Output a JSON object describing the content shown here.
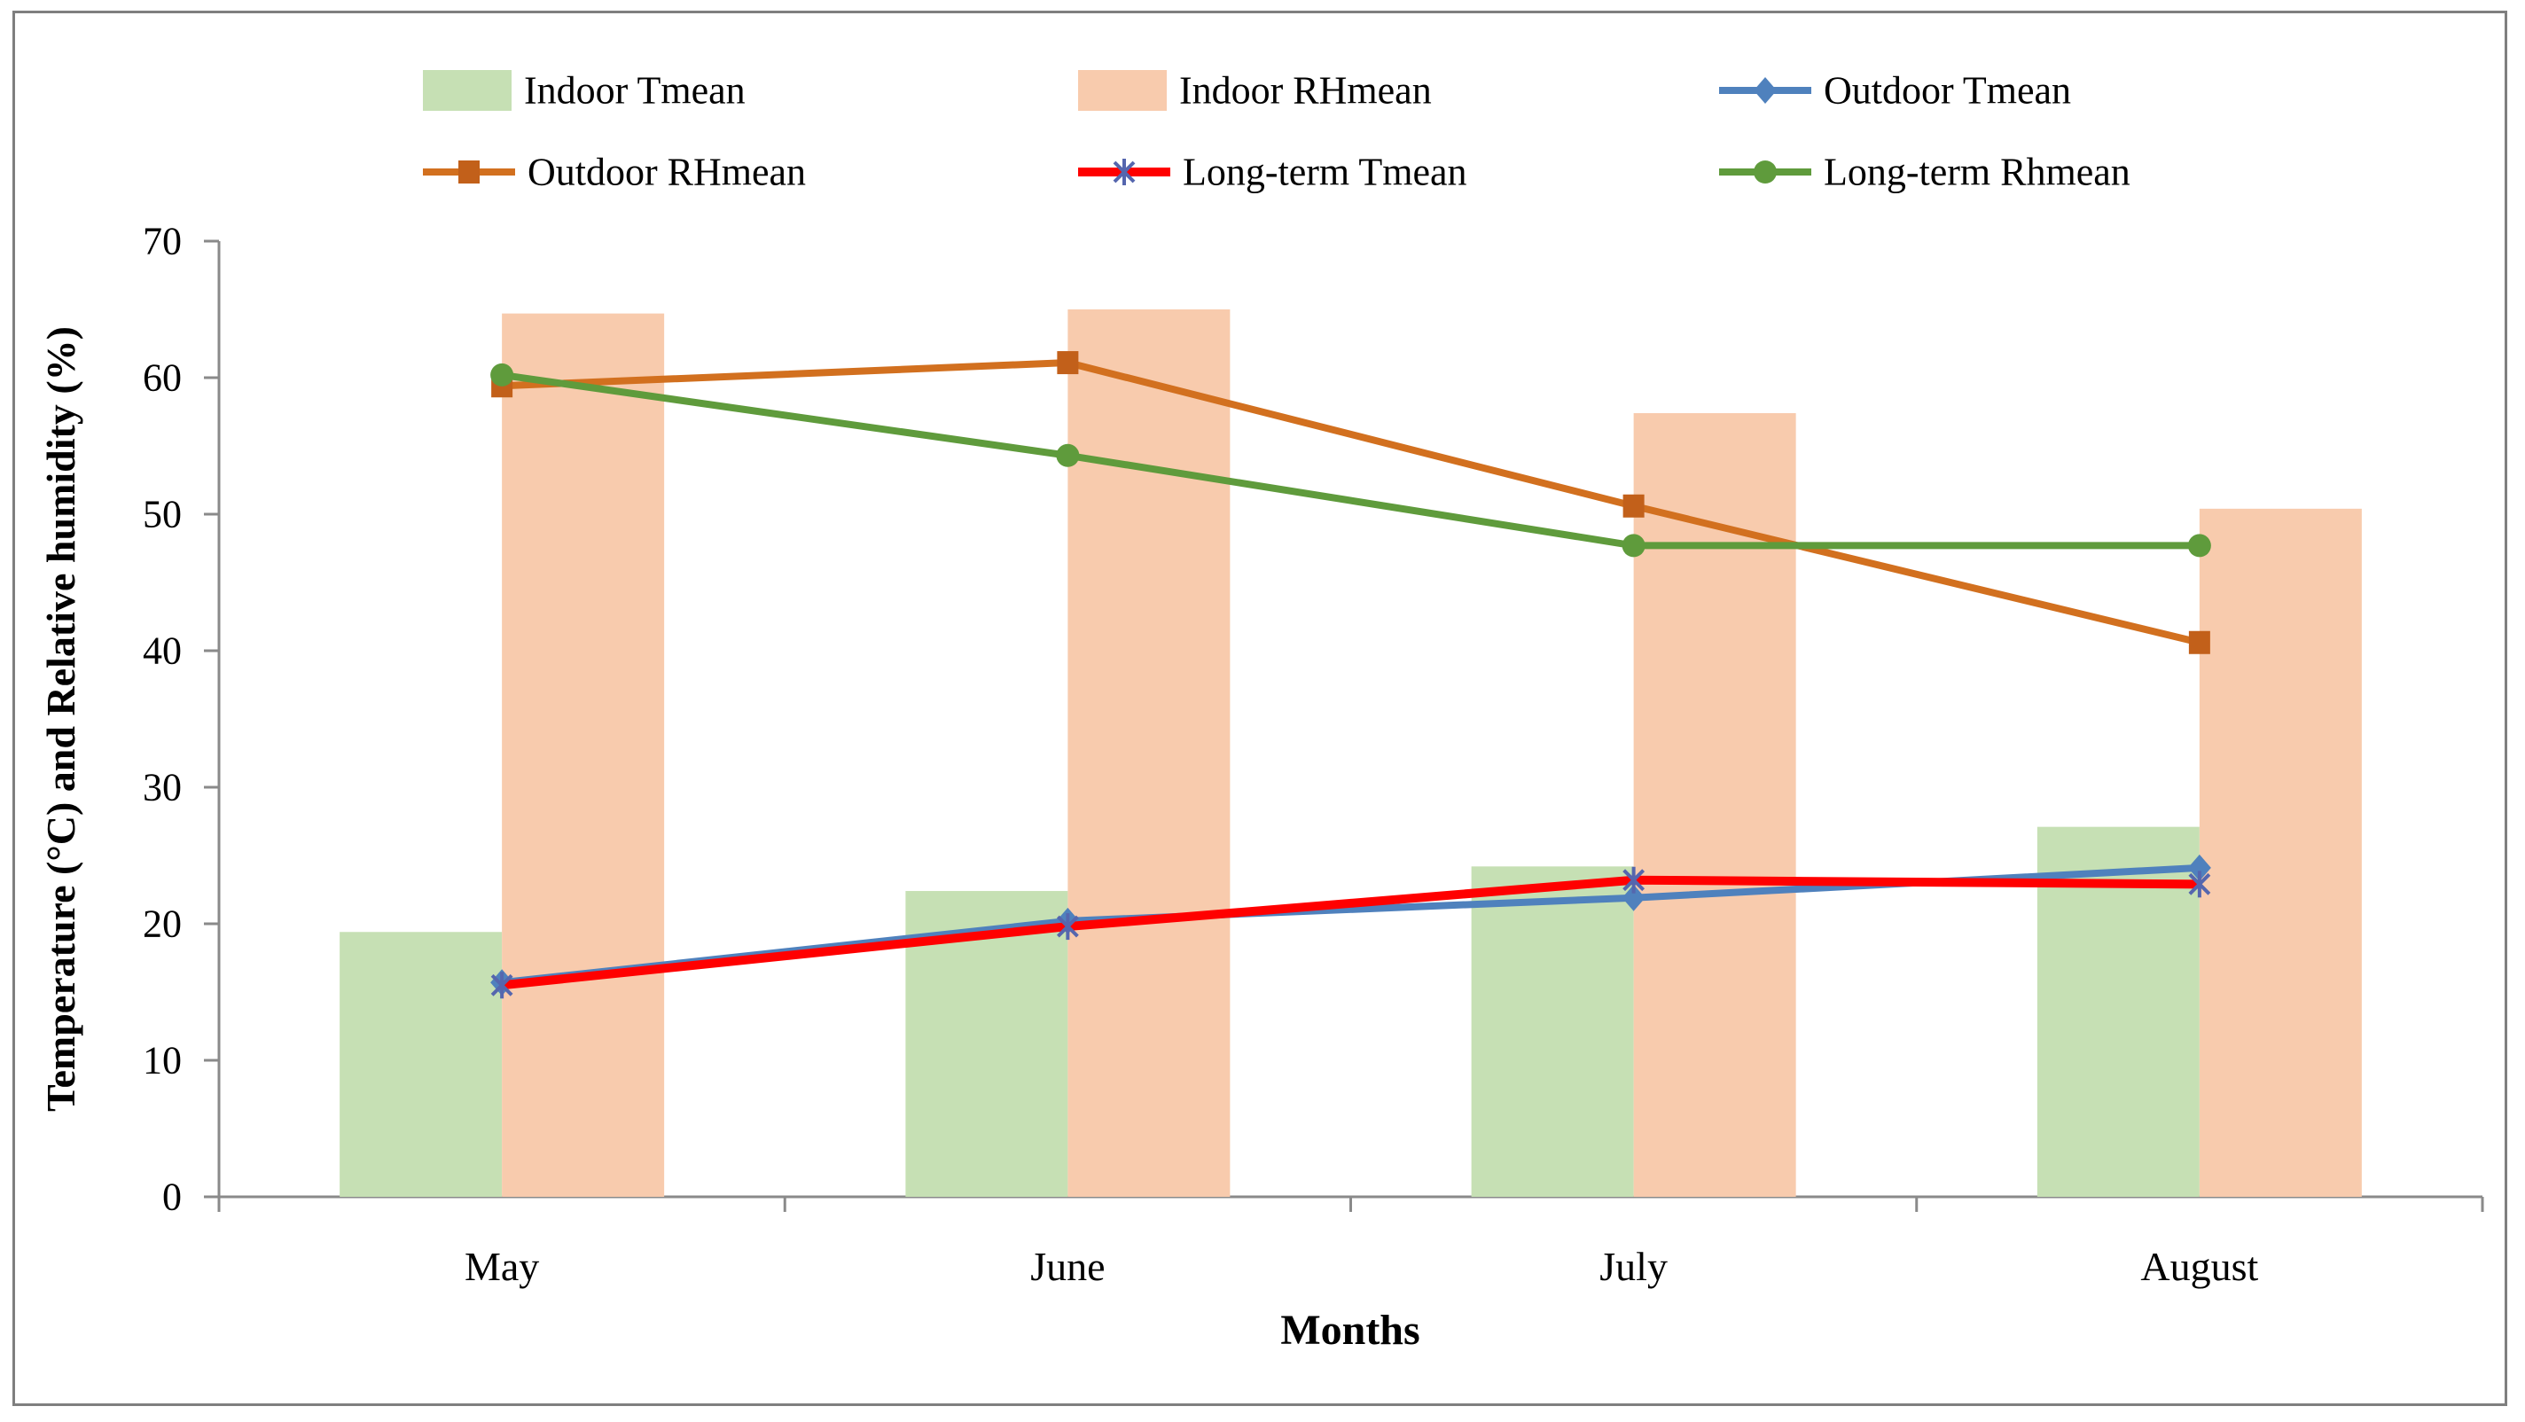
{
  "figure": {
    "background": "#ffffff",
    "border_color": "#7f7f7f",
    "axis_color": "#8a8a8a"
  },
  "chart_data": {
    "type": "combo bar+line",
    "categories": [
      "May",
      "June",
      "July",
      "August"
    ],
    "x_axis_title": "Months",
    "y_axis_title": "Temperature (°C) and Relative humidity (%)",
    "y_ticks": [
      0,
      10,
      20,
      30,
      40,
      50,
      60,
      70
    ],
    "ylim": [
      0,
      70
    ],
    "grid": "off",
    "legend_position": "top, 2 rows x 3 columns",
    "series": [
      {
        "name": "Indoor Tmean",
        "type": "bar",
        "color": "#c6e0b4",
        "values": [
          19.4,
          22.4,
          24.2,
          27.1
        ]
      },
      {
        "name": "Indoor RHmean",
        "type": "bar",
        "color": "#f8cbad",
        "values": [
          64.7,
          65.0,
          57.4,
          50.4
        ]
      },
      {
        "name": "Outdoor Tmean",
        "type": "line",
        "color": "#4f81bd",
        "marker": "diamond",
        "marker_color": "#4f81bd",
        "line_width": 8,
        "values": [
          15.7,
          20.2,
          21.9,
          24.1
        ]
      },
      {
        "name": "Outdoor RHmean",
        "type": "line",
        "color": "#d2701f",
        "marker": "square",
        "marker_color": "#c2601a",
        "line_width": 8,
        "values": [
          59.4,
          61.1,
          50.6,
          40.6
        ]
      },
      {
        "name": "Long-term Tmean",
        "type": "line",
        "color": "#ff0000",
        "marker": "asterisk",
        "marker_color": "#5566ae",
        "line_width": 10,
        "values": [
          15.5,
          19.8,
          23.2,
          22.9
        ]
      },
      {
        "name": "Long-term Rhmean",
        "type": "line",
        "color": "#5f9b3c",
        "marker": "circle",
        "marker_color": "#5f9b3c",
        "line_width": 8,
        "values": [
          60.2,
          54.3,
          47.7,
          47.7
        ]
      }
    ]
  }
}
